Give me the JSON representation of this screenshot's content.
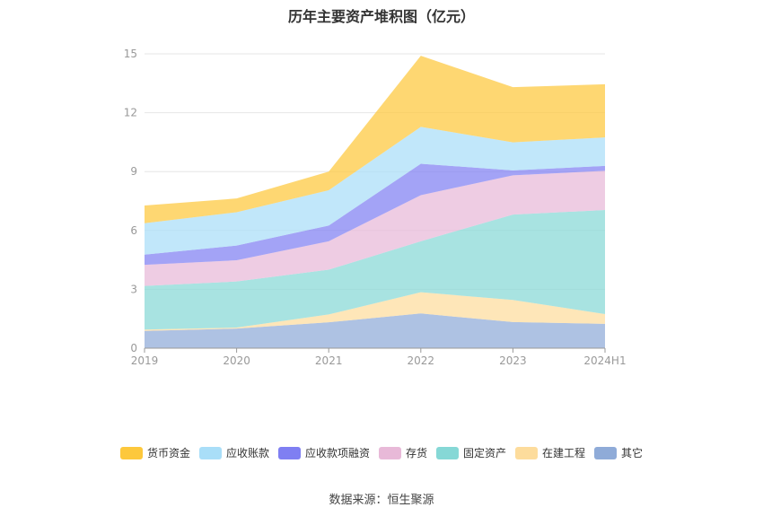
{
  "chart_data": {
    "type": "area",
    "stacked": true,
    "title": "历年主要资产堆积图（亿元）",
    "categories": [
      "2019",
      "2020",
      "2021",
      "2022",
      "2023",
      "2024H1"
    ],
    "ylim": [
      0,
      15
    ],
    "yticks": [
      0,
      3,
      6,
      9,
      12,
      15
    ],
    "series": [
      {
        "name": "其它",
        "color": "#8fabd8",
        "values": [
          0.88,
          1.0,
          1.32,
          1.77,
          1.33,
          1.24
        ]
      },
      {
        "name": "在建工程",
        "color": "#fddc9c",
        "values": [
          0.07,
          0.05,
          0.4,
          1.08,
          1.13,
          0.5
        ]
      },
      {
        "name": "固定资产",
        "color": "#86d8d6",
        "values": [
          2.22,
          2.35,
          2.28,
          2.6,
          4.35,
          5.3
        ]
      },
      {
        "name": "存货",
        "color": "#e8b9d8",
        "values": [
          1.08,
          1.08,
          1.45,
          2.35,
          2.0,
          2.0
        ]
      },
      {
        "name": "应收款项融资",
        "color": "#7f7ff2",
        "values": [
          0.52,
          0.75,
          0.8,
          1.6,
          0.25,
          0.25
        ]
      },
      {
        "name": "应收账款",
        "color": "#a9def8",
        "values": [
          1.6,
          1.7,
          1.8,
          1.88,
          1.43,
          1.45
        ]
      },
      {
        "name": "货币资金",
        "color": "#fdc83c",
        "values": [
          0.9,
          0.7,
          0.95,
          3.62,
          2.81,
          2.71
        ]
      }
    ],
    "legend_order": [
      "货币资金",
      "应收账款",
      "应收款项融资",
      "存货",
      "固定资产",
      "在建工程",
      "其它"
    ],
    "grid": true,
    "legend_position": "bottom"
  },
  "source_text": "数据来源：恒生聚源"
}
